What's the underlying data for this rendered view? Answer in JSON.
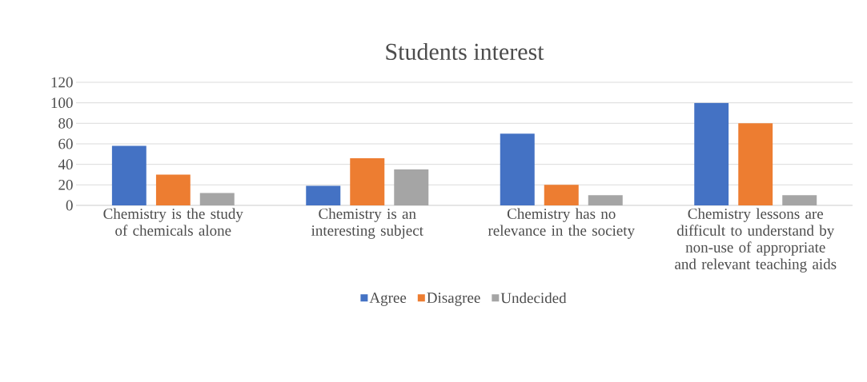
{
  "chart_data": {
    "type": "bar",
    "title": "Students interest",
    "categories": [
      "Chemistry is the study of chemicals alone",
      "Chemistry is an interesting subject",
      "Chemistry has no relevance in the society",
      "Chemistry lessons are difficult to understand by non-use of appropriate and relevant teaching aids"
    ],
    "series": [
      {
        "name": "Agree",
        "color": "#4472c4",
        "values": [
          58,
          19,
          70,
          100
        ]
      },
      {
        "name": "Disagree",
        "color": "#ed7d31",
        "values": [
          30,
          46,
          20,
          80
        ]
      },
      {
        "name": "Undecided",
        "color": "#a5a5a5",
        "values": [
          12,
          35,
          10,
          10
        ]
      }
    ],
    "ylim": [
      0,
      120
    ],
    "yticks": [
      0,
      20,
      40,
      60,
      80,
      100,
      120
    ],
    "grid": "y",
    "legend": "bottom"
  }
}
